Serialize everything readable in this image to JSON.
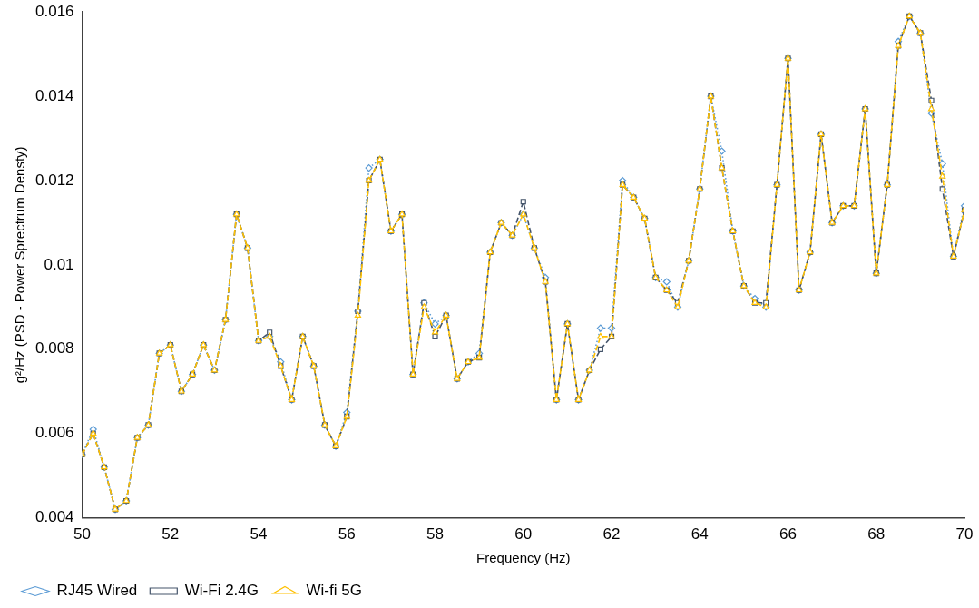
{
  "chart_data": {
    "type": "line",
    "xlabel": "Frequency (Hz)",
    "ylabel": "g²/Hz (PSD - Power Sprectrum Densty)",
    "x": [
      50,
      50.25,
      50.5,
      50.75,
      51,
      51.25,
      51.5,
      51.75,
      52,
      52.25,
      52.5,
      52.75,
      53,
      53.25,
      53.5,
      53.75,
      54,
      54.25,
      54.5,
      54.75,
      55,
      55.25,
      55.5,
      55.75,
      56,
      56.25,
      56.5,
      56.75,
      57,
      57.25,
      57.5,
      57.75,
      58,
      58.25,
      58.5,
      58.75,
      59,
      59.25,
      59.5,
      59.75,
      60,
      60.25,
      60.5,
      60.75,
      61,
      61.25,
      61.5,
      61.75,
      62,
      62.25,
      62.5,
      62.75,
      63,
      63.25,
      63.5,
      63.75,
      64,
      64.25,
      64.5,
      64.75,
      65,
      65.25,
      65.5,
      65.75,
      66,
      66.25,
      66.5,
      66.75,
      67,
      67.25,
      67.5,
      67.75,
      68,
      68.25,
      68.5,
      68.75,
      69,
      69.25,
      69.5,
      69.75,
      70
    ],
    "series": [
      {
        "name": "RJ45 Wired",
        "color": "#5b9bd5",
        "marker": "diamond",
        "line_style": "dotted",
        "values": [
          0.0055,
          0.0061,
          0.0052,
          0.0042,
          0.0044,
          0.0059,
          0.0062,
          0.0079,
          0.0081,
          0.007,
          0.0074,
          0.0081,
          0.0075,
          0.0087,
          0.0112,
          0.0104,
          0.0082,
          0.0083,
          0.0077,
          0.0068,
          0.0083,
          0.0076,
          0.0062,
          0.0057,
          0.0065,
          0.0089,
          0.0123,
          0.0125,
          0.0108,
          0.0112,
          0.0074,
          0.0091,
          0.0086,
          0.0088,
          0.0073,
          0.0077,
          0.0079,
          0.0103,
          0.011,
          0.0107,
          0.0112,
          0.0104,
          0.0097,
          0.0068,
          0.0086,
          0.0068,
          0.0075,
          0.0085,
          0.0085,
          0.012,
          0.0116,
          0.0111,
          0.0097,
          0.0096,
          0.009,
          0.0101,
          0.0118,
          0.014,
          0.0127,
          0.0108,
          0.0095,
          0.0092,
          0.009,
          0.0119,
          0.0149,
          0.0094,
          0.0103,
          0.0131,
          0.011,
          0.0114,
          0.0114,
          0.0137,
          0.0098,
          0.0119,
          0.0153,
          0.0159,
          0.0155,
          0.0136,
          0.0124,
          0.0102,
          0.0114
        ]
      },
      {
        "name": "Wi-Fi 2.4G",
        "color": "#44546a",
        "marker": "square",
        "line_style": "dashed",
        "values": [
          0.0055,
          0.006,
          0.0052,
          0.0042,
          0.0044,
          0.0059,
          0.0062,
          0.0079,
          0.0081,
          0.007,
          0.0074,
          0.0081,
          0.0075,
          0.0087,
          0.0112,
          0.0104,
          0.0082,
          0.0084,
          0.0076,
          0.0068,
          0.0083,
          0.0076,
          0.0062,
          0.0057,
          0.0064,
          0.0089,
          0.012,
          0.0125,
          0.0108,
          0.0112,
          0.0074,
          0.0091,
          0.0083,
          0.0088,
          0.0073,
          0.0077,
          0.0078,
          0.0103,
          0.011,
          0.0107,
          0.0115,
          0.0104,
          0.0096,
          0.0068,
          0.0086,
          0.0068,
          0.0075,
          0.008,
          0.0083,
          0.0119,
          0.0116,
          0.0111,
          0.0097,
          0.0094,
          0.0091,
          0.0101,
          0.0118,
          0.014,
          0.0123,
          0.0108,
          0.0095,
          0.0091,
          0.0091,
          0.0119,
          0.0149,
          0.0094,
          0.0103,
          0.0131,
          0.011,
          0.0114,
          0.0114,
          0.0137,
          0.0098,
          0.0119,
          0.0152,
          0.0159,
          0.0155,
          0.0139,
          0.0118,
          0.0102,
          0.0113
        ]
      },
      {
        "name": "Wi-fi 5G",
        "color": "#ffc000",
        "marker": "triangle",
        "line_style": "dashed",
        "values": [
          0.0055,
          0.006,
          0.0052,
          0.0042,
          0.0044,
          0.0059,
          0.0062,
          0.0079,
          0.0081,
          0.007,
          0.0074,
          0.0081,
          0.0075,
          0.0087,
          0.0112,
          0.0104,
          0.0082,
          0.0083,
          0.0076,
          0.0068,
          0.0083,
          0.0076,
          0.0062,
          0.0057,
          0.0064,
          0.0088,
          0.012,
          0.0125,
          0.0108,
          0.0112,
          0.0074,
          0.009,
          0.0084,
          0.0088,
          0.0073,
          0.0077,
          0.0078,
          0.0103,
          0.011,
          0.0107,
          0.0112,
          0.0104,
          0.0096,
          0.0068,
          0.0086,
          0.0068,
          0.0075,
          0.0083,
          0.0083,
          0.0119,
          0.0116,
          0.0111,
          0.0097,
          0.0094,
          0.009,
          0.0101,
          0.0118,
          0.014,
          0.0123,
          0.0108,
          0.0095,
          0.0091,
          0.009,
          0.0119,
          0.0149,
          0.0094,
          0.0103,
          0.0131,
          0.011,
          0.0114,
          0.0114,
          0.0137,
          0.0098,
          0.0119,
          0.0152,
          0.0159,
          0.0155,
          0.0137,
          0.0121,
          0.0102,
          0.0113
        ]
      }
    ],
    "xlim": [
      50,
      70
    ],
    "xticks": [
      50,
      52,
      54,
      56,
      58,
      60,
      62,
      64,
      66,
      68,
      70
    ],
    "ylim": [
      0.004,
      0.016
    ],
    "yticks": [
      0.004,
      0.006,
      0.008,
      0.01,
      0.012,
      0.014,
      0.016
    ],
    "grid": false,
    "legend": "bottom left"
  }
}
